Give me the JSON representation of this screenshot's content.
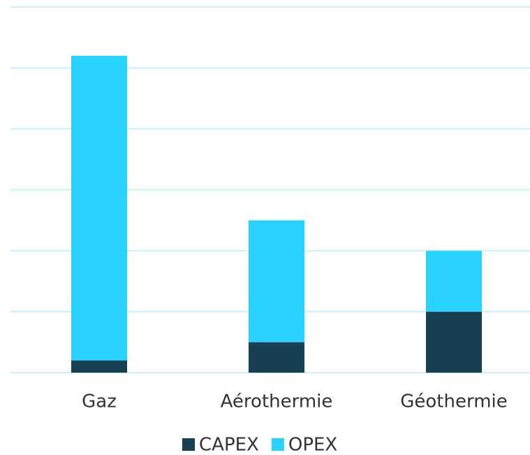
{
  "chart_data": {
    "type": "stacked_bar",
    "categories": [
      "Gaz",
      "Aérothermie",
      "Géothermie"
    ],
    "series": [
      {
        "name": "CAPEX",
        "color": "#183f52",
        "values": [
          0.2,
          0.5,
          1.0
        ]
      },
      {
        "name": "OPEX",
        "color": "#29d3fd",
        "values": [
          5.0,
          2.0,
          1.0
        ]
      }
    ],
    "ylim": [
      0,
      6
    ],
    "yticks": [
      0,
      1,
      2,
      3,
      4,
      5,
      6
    ],
    "grid": true,
    "grid_color": "#c9f0fb",
    "legend": "bottom"
  }
}
